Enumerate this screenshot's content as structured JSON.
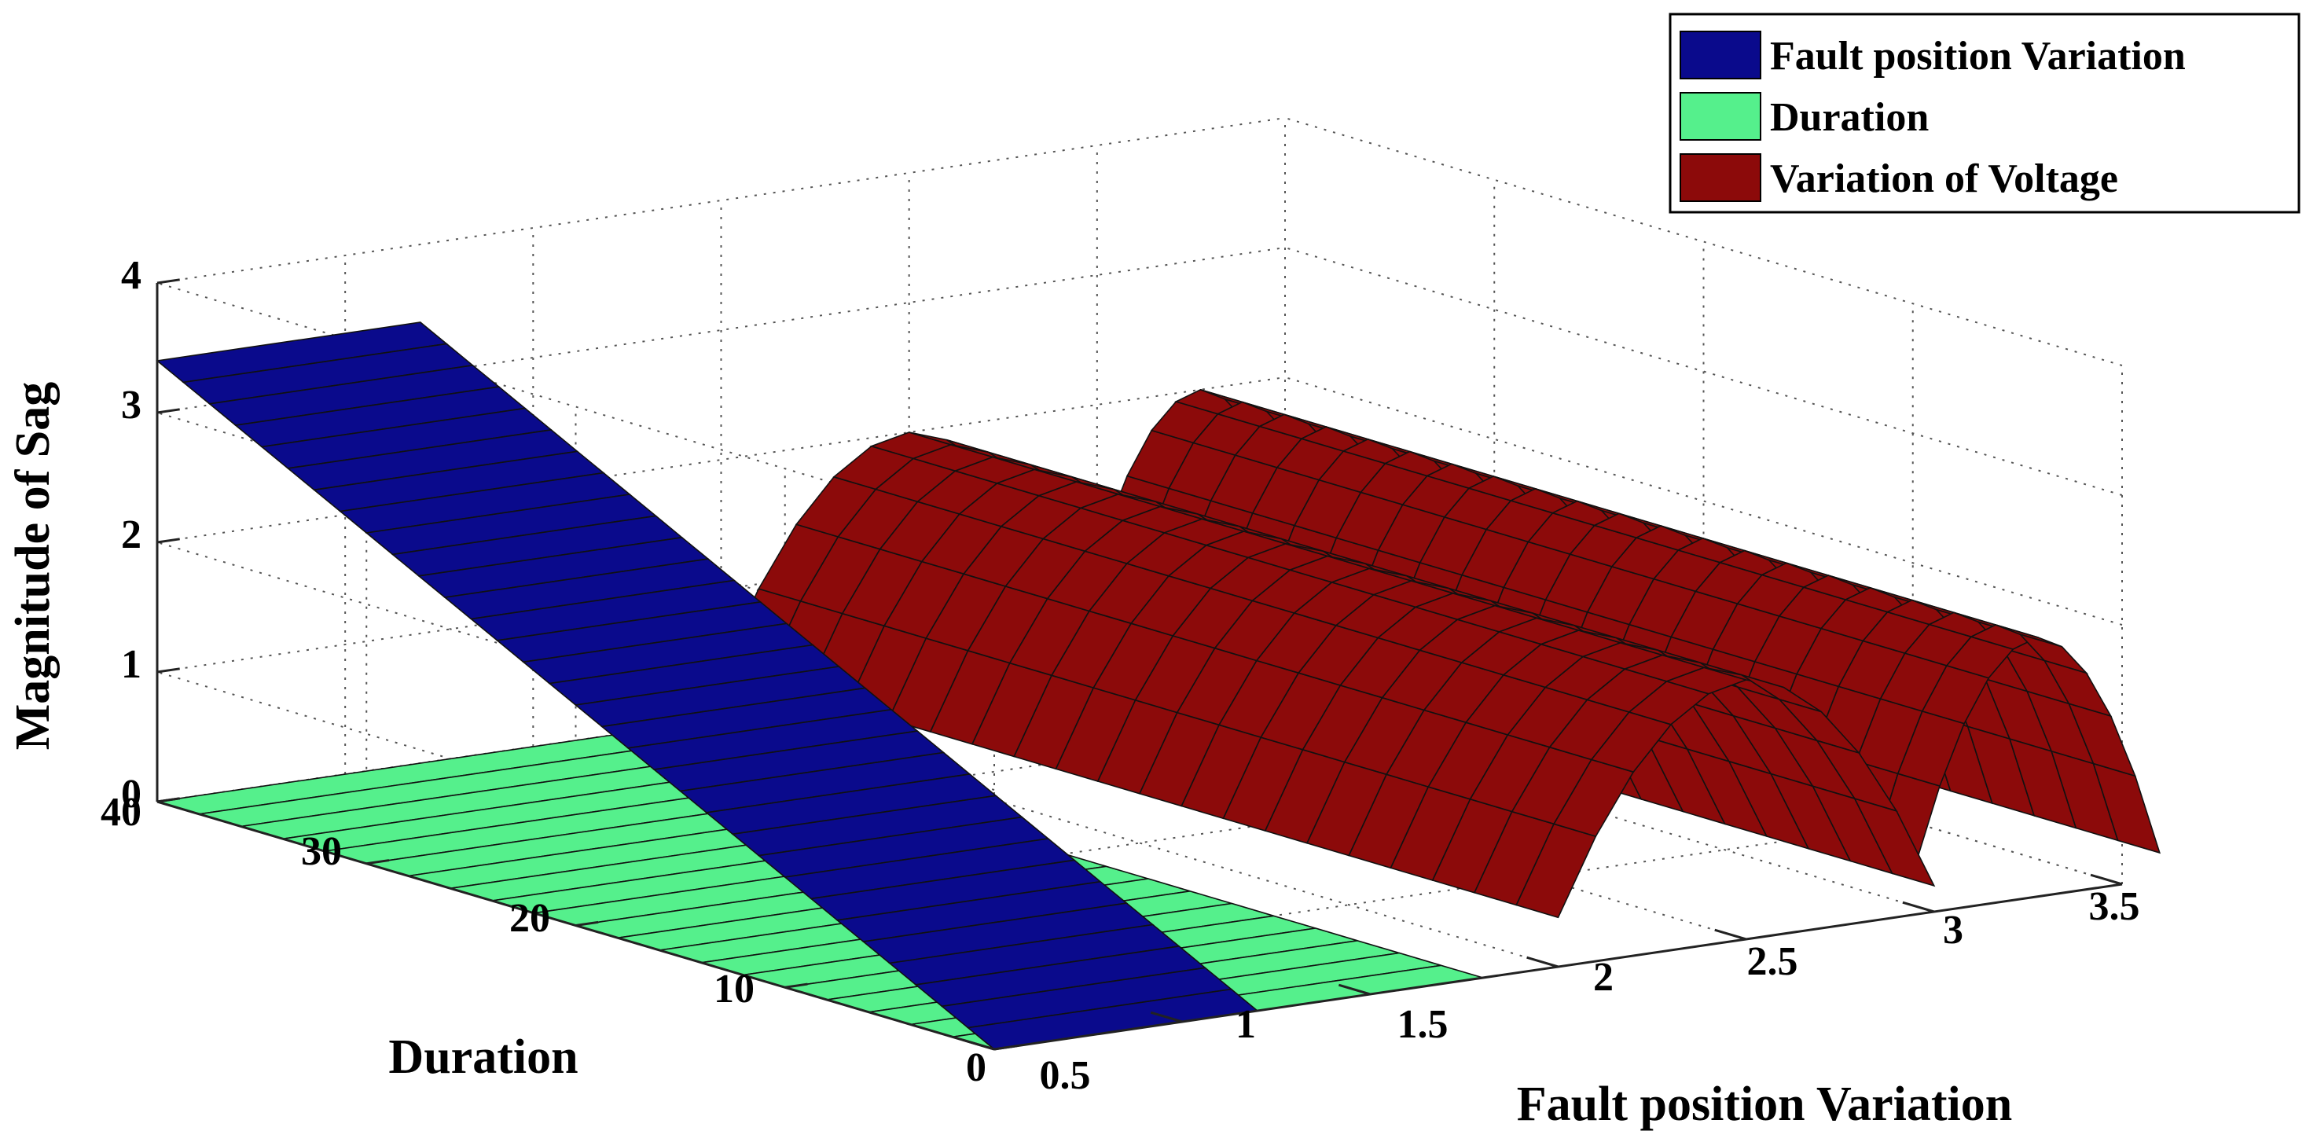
{
  "chart_data": {
    "type": "surface3d",
    "title": "",
    "xlabel": "Fault position Variation",
    "ylabel": "Duration",
    "zlabel": "Magnitude of Sag",
    "xlim": [
      0.5,
      3.5
    ],
    "ylim": [
      0,
      40
    ],
    "zlim": [
      0,
      4
    ],
    "xticks": [
      "0.5",
      "1",
      "1.5",
      "2",
      "2.5",
      "3",
      "3.5"
    ],
    "yticks": [
      "0",
      "10",
      "20",
      "30",
      "40"
    ],
    "zticks": [
      "0",
      "1",
      "2",
      "3",
      "4"
    ],
    "grid": true,
    "legend_position": "top-right",
    "series": [
      {
        "name": "Fault position Variation",
        "color": "#0a0a8c",
        "x": [
          0.5,
          1.2
        ],
        "y": [
          0,
          40
        ],
        "z_at_x": [
          0,
          4
        ]
      },
      {
        "name": "Duration",
        "color": "#55f08c",
        "x": [
          0.5,
          1.8
        ],
        "y": [
          0,
          40
        ],
        "z_at_x": [
          0,
          0
        ]
      },
      {
        "name": "Variation of Voltage",
        "color": "#8c0a0a",
        "x_ranges": [
          [
            2.0,
            3.0
          ],
          [
            2.95,
            3.6
          ]
        ],
        "y": [
          0,
          40
        ],
        "z_peak": 2.0,
        "z_edge": 0.2
      }
    ]
  }
}
